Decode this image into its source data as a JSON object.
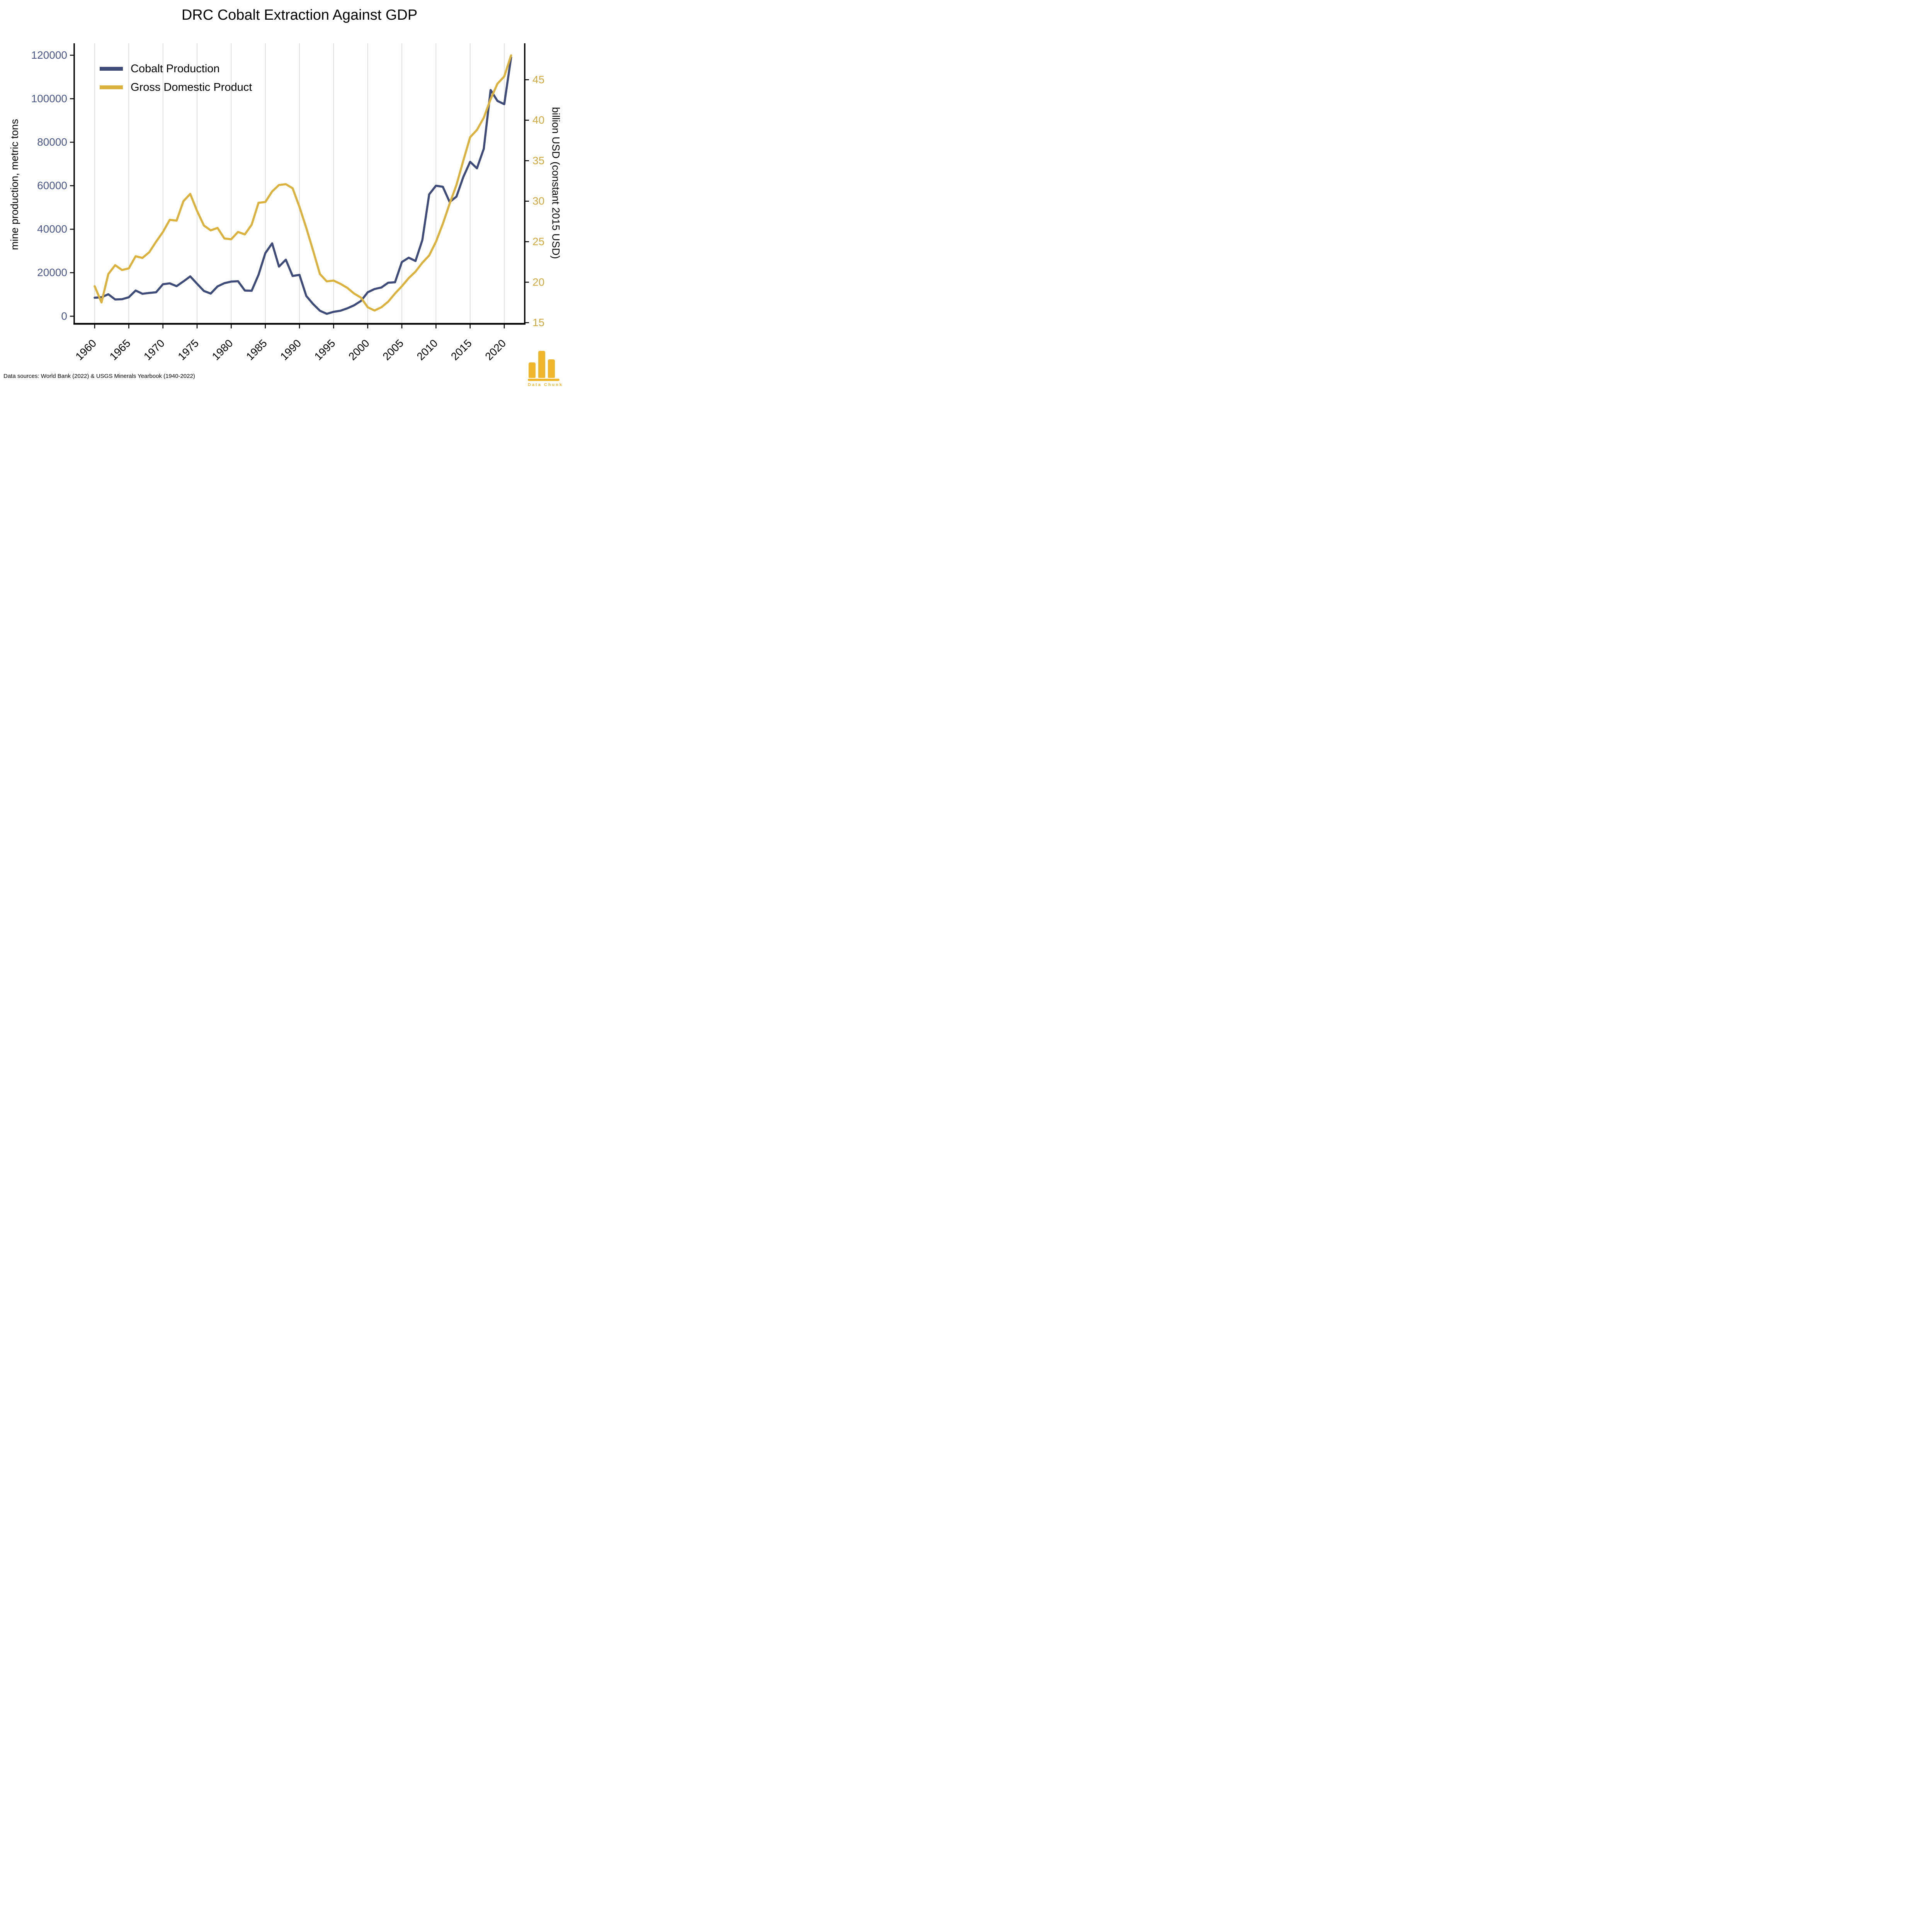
{
  "title": "DRC Cobalt Extraction Against GDP",
  "footer": "Data sources: World Bank (2022) & USGS Minerals Yearbook (1940-2022)",
  "logo": {
    "text": "Data Chunk",
    "color": "#F1B72C"
  },
  "legend": {
    "items": [
      {
        "label": "Cobalt Production",
        "color": "#3F4B78"
      },
      {
        "label": "Gross Domestic Product",
        "color": "#DCB23F"
      }
    ]
  },
  "chart_data": {
    "type": "line",
    "title": "DRC Cobalt Extraction Against GDP",
    "x": [
      1960,
      1961,
      1962,
      1963,
      1964,
      1965,
      1966,
      1967,
      1968,
      1969,
      1970,
      1971,
      1972,
      1973,
      1974,
      1975,
      1976,
      1977,
      1978,
      1979,
      1980,
      1981,
      1982,
      1983,
      1984,
      1985,
      1986,
      1987,
      1988,
      1989,
      1990,
      1991,
      1992,
      1993,
      1994,
      1995,
      1996,
      1997,
      1998,
      1999,
      2000,
      2001,
      2002,
      2003,
      2004,
      2005,
      2006,
      2007,
      2008,
      2009,
      2010,
      2011,
      2012,
      2013,
      2014,
      2015,
      2016,
      2017,
      2018,
      2019,
      2020,
      2021
    ],
    "series": [
      {
        "name": "Cobalt Production",
        "axis": "left",
        "color": "#3F4B78",
        "values": [
          8500,
          8700,
          10100,
          7700,
          7800,
          8700,
          11800,
          10300,
          10700,
          11000,
          14700,
          15100,
          13800,
          16000,
          18300,
          14900,
          11600,
          10400,
          13700,
          15200,
          15900,
          16100,
          11800,
          11700,
          19000,
          29000,
          33500,
          22800,
          26000,
          18500,
          19000,
          9300,
          5600,
          2500,
          1100,
          2000,
          2500,
          3600,
          5000,
          7000,
          11000,
          12500,
          13200,
          15400,
          15600,
          24900,
          26900,
          25400,
          35000,
          56000,
          60000,
          59500,
          52500,
          55000,
          64000,
          71000,
          68000,
          77000,
          104000,
          99000,
          97500,
          119000
        ]
      },
      {
        "name": "Gross Domestic Product",
        "axis": "right",
        "color": "#DCB23F",
        "values": [
          19.5,
          17.5,
          21.0,
          22.1,
          21.5,
          21.7,
          23.2,
          23.0,
          23.7,
          25.0,
          26.2,
          27.7,
          27.6,
          30.0,
          30.9,
          28.8,
          27.0,
          26.4,
          26.7,
          25.4,
          25.3,
          26.2,
          25.9,
          27.1,
          29.8,
          29.9,
          31.2,
          32.0,
          32.1,
          31.6,
          29.3,
          26.7,
          23.9,
          21.0,
          20.1,
          20.2,
          19.8,
          19.3,
          18.6,
          18.1,
          16.9,
          16.5,
          16.9,
          17.6,
          18.6,
          19.5,
          20.5,
          21.3,
          22.4,
          23.3,
          25.0,
          27.2,
          29.7,
          32.0,
          35.0,
          37.9,
          38.8,
          40.3,
          42.6,
          44.5,
          45.4,
          48.0
        ]
      }
    ],
    "left_axis": {
      "label": "mine production, metric tons",
      "ticks": [
        0,
        20000,
        40000,
        60000,
        80000,
        100000,
        120000
      ],
      "range": [
        -3500,
        125500
      ],
      "tick_color": "#4A5585"
    },
    "right_axis": {
      "label": "billion USD (constant 2015 USD)",
      "ticks": [
        15,
        20,
        25,
        30,
        35,
        40,
        45
      ],
      "range": [
        14.86,
        49.5
      ],
      "tick_color": "#CFA93D"
    },
    "x_axis": {
      "ticks": [
        1960,
        1965,
        1970,
        1975,
        1980,
        1985,
        1990,
        1995,
        2000,
        2005,
        2010,
        2015,
        2020
      ],
      "range": [
        1957,
        2023
      ],
      "tick_label_rotation": -45
    },
    "grid": "vertical",
    "grid_color": "#D3D3D3",
    "legend_position": "upper-left"
  }
}
